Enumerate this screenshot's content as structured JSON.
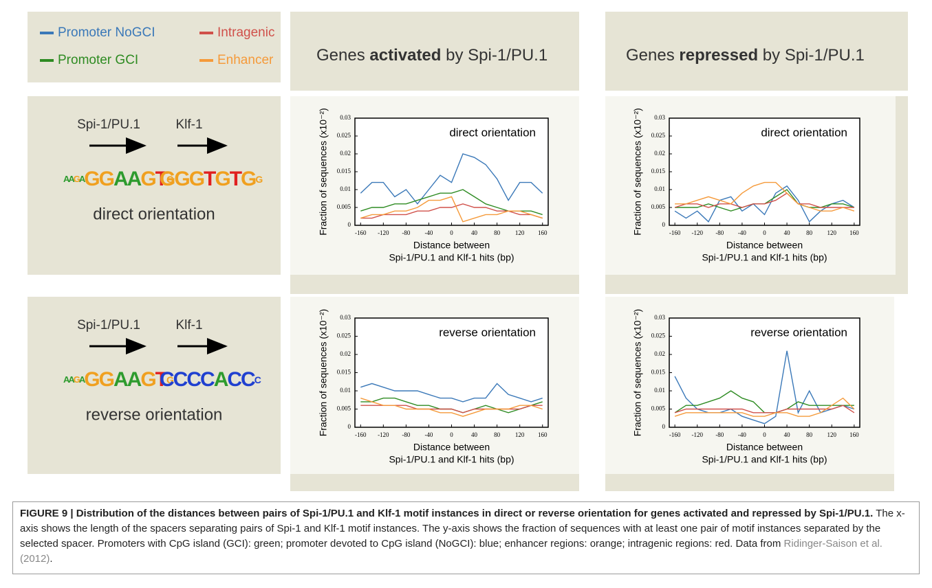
{
  "legend_title_none": null,
  "headers": [
    [
      "Genes ",
      "activated",
      " by Spi-1/PU.1"
    ],
    [
      "Genes ",
      "repressed",
      " by Spi-1/PU.1"
    ]
  ],
  "rows": [
    {
      "motifs": [
        "Spi-1/PU.1",
        "Klf-1"
      ],
      "logo": [
        "AAGAGGAAGTG",
        "GGGTGTGG"
      ],
      "label": "direct orientation"
    },
    {
      "motifs": [
        "Spi-1/PU.1",
        "Klf-1"
      ],
      "logo": [
        "AAGAGGAAGTG",
        "CCCCACCC"
      ],
      "label": "reverse orientation"
    }
  ],
  "chart_data": [
    {
      "type": "line",
      "title": "direct orientation",
      "ylabel": "Fraction of sequences (x10⁻²)",
      "xlabel": [
        "Distance between",
        "Spi-1/PU.1 and Klf-1 hits (bp)"
      ],
      "x": [
        -160,
        -140,
        -120,
        -100,
        -80,
        -60,
        -40,
        -20,
        0,
        20,
        40,
        60,
        80,
        100,
        120,
        140,
        160
      ],
      "xlim": [
        -170,
        170
      ],
      "ylim": [
        0,
        0.03
      ],
      "xticks": [
        -160,
        -120,
        -80,
        -40,
        0,
        40,
        80,
        120,
        160
      ],
      "yticks": [
        0,
        0.005,
        0.01,
        0.015,
        0.02,
        0.025,
        0.03
      ],
      "series": [
        {
          "name": "Promoter NoGCI",
          "color": "#3a78b8",
          "values": [
            0.009,
            0.012,
            0.012,
            0.008,
            0.01,
            0.006,
            0.01,
            0.014,
            0.012,
            0.02,
            0.019,
            0.017,
            0.013,
            0.007,
            0.012,
            0.012,
            0.009
          ]
        },
        {
          "name": "Promoter GCI",
          "color": "#2e8b22",
          "values": [
            0.004,
            0.005,
            0.005,
            0.006,
            0.006,
            0.007,
            0.008,
            0.009,
            0.009,
            0.01,
            0.008,
            0.006,
            0.005,
            0.004,
            0.004,
            0.004,
            0.003
          ]
        },
        {
          "name": "Intragenic",
          "color": "#d0504a",
          "values": [
            0.002,
            0.002,
            0.003,
            0.003,
            0.003,
            0.004,
            0.004,
            0.005,
            0.005,
            0.006,
            0.005,
            0.005,
            0.004,
            0.004,
            0.003,
            0.003,
            0.002
          ]
        },
        {
          "name": "Enhancer",
          "color": "#f59a3a",
          "values": [
            0.002,
            0.003,
            0.003,
            0.004,
            0.004,
            0.005,
            0.007,
            0.007,
            0.008,
            0.001,
            0.002,
            0.003,
            0.003,
            0.004,
            0.004,
            0.003,
            0.002
          ]
        }
      ]
    },
    {
      "type": "line",
      "title": "direct orientation",
      "ylabel": "Fraction of sequences (x10⁻²)",
      "xlabel": [
        "Distance between",
        "Spi-1/PU.1 and Klf-1 hits (bp)"
      ],
      "x": [
        -160,
        -140,
        -120,
        -100,
        -80,
        -60,
        -40,
        -20,
        0,
        20,
        40,
        60,
        80,
        100,
        120,
        140,
        160
      ],
      "xlim": [
        -170,
        170
      ],
      "ylim": [
        0,
        0.03
      ],
      "xticks": [
        -160,
        -120,
        -80,
        -40,
        0,
        40,
        80,
        120,
        160
      ],
      "yticks": [
        0,
        0.005,
        0.01,
        0.015,
        0.02,
        0.025,
        0.03
      ],
      "series": [
        {
          "name": "Promoter NoGCI",
          "color": "#3a78b8",
          "values": [
            0.004,
            0.002,
            0.004,
            0.001,
            0.007,
            0.008,
            0.004,
            0.006,
            0.003,
            0.009,
            0.011,
            0.007,
            0.001,
            0.004,
            0.006,
            0.007,
            0.005
          ]
        },
        {
          "name": "Promoter GCI",
          "color": "#2e8b22",
          "values": [
            0.005,
            0.005,
            0.005,
            0.006,
            0.005,
            0.004,
            0.005,
            0.006,
            0.006,
            0.008,
            0.01,
            0.006,
            0.005,
            0.005,
            0.006,
            0.006,
            0.005
          ]
        },
        {
          "name": "Intragenic",
          "color": "#d0504a",
          "values": [
            0.005,
            0.006,
            0.006,
            0.005,
            0.006,
            0.006,
            0.005,
            0.006,
            0.006,
            0.007,
            0.009,
            0.006,
            0.006,
            0.005,
            0.005,
            0.005,
            0.005
          ]
        },
        {
          "name": "Enhancer",
          "color": "#f59a3a",
          "values": [
            0.006,
            0.006,
            0.007,
            0.008,
            0.007,
            0.006,
            0.009,
            0.011,
            0.012,
            0.012,
            0.009,
            0.006,
            0.005,
            0.004,
            0.004,
            0.005,
            0.004
          ]
        }
      ]
    },
    {
      "type": "line",
      "title": "reverse orientation",
      "ylabel": "Fraction of sequences (x10⁻²)",
      "xlabel": [
        "Distance between",
        "Spi-1/PU.1 and Klf-1 hits (bp)"
      ],
      "x": [
        -160,
        -140,
        -120,
        -100,
        -80,
        -60,
        -40,
        -20,
        0,
        20,
        40,
        60,
        80,
        100,
        120,
        140,
        160
      ],
      "xlim": [
        -170,
        170
      ],
      "ylim": [
        0,
        0.03
      ],
      "xticks": [
        -160,
        -120,
        -80,
        -40,
        0,
        40,
        80,
        120,
        160
      ],
      "yticks": [
        0,
        0.005,
        0.01,
        0.015,
        0.02,
        0.025,
        0.03
      ],
      "series": [
        {
          "name": "Promoter NoGCI",
          "color": "#3a78b8",
          "values": [
            0.011,
            0.012,
            0.011,
            0.01,
            0.01,
            0.01,
            0.009,
            0.008,
            0.008,
            0.007,
            0.008,
            0.008,
            0.012,
            0.009,
            0.008,
            0.007,
            0.008
          ]
        },
        {
          "name": "Promoter GCI",
          "color": "#2e8b22",
          "values": [
            0.007,
            0.007,
            0.008,
            0.008,
            0.007,
            0.006,
            0.006,
            0.005,
            0.005,
            0.004,
            0.005,
            0.006,
            0.005,
            0.004,
            0.005,
            0.006,
            0.007
          ]
        },
        {
          "name": "Intragenic",
          "color": "#d0504a",
          "values": [
            0.006,
            0.006,
            0.006,
            0.006,
            0.006,
            0.005,
            0.005,
            0.005,
            0.005,
            0.004,
            0.005,
            0.005,
            0.005,
            0.005,
            0.005,
            0.006,
            0.006
          ]
        },
        {
          "name": "Enhancer",
          "color": "#f59a3a",
          "values": [
            0.008,
            0.007,
            0.006,
            0.006,
            0.005,
            0.005,
            0.005,
            0.004,
            0.004,
            0.003,
            0.004,
            0.005,
            0.005,
            0.005,
            0.006,
            0.006,
            0.005
          ]
        }
      ]
    },
    {
      "type": "line",
      "title": "reverse orientation",
      "ylabel": "Fraction of sequences (x10⁻²)",
      "xlabel": [
        "Distance between",
        "Spi-1/PU.1 and Klf-1 hits (bp)"
      ],
      "x": [
        -160,
        -140,
        -120,
        -100,
        -80,
        -60,
        -40,
        -20,
        0,
        20,
        40,
        60,
        80,
        100,
        120,
        140,
        160
      ],
      "xlim": [
        -170,
        170
      ],
      "ylim": [
        0,
        0.03
      ],
      "xticks": [
        -160,
        -120,
        -80,
        -40,
        0,
        40,
        80,
        120,
        160
      ],
      "yticks": [
        0,
        0.005,
        0.01,
        0.015,
        0.02,
        0.025,
        0.03
      ],
      "series": [
        {
          "name": "Promoter NoGCI",
          "color": "#3a78b8",
          "values": [
            0.014,
            0.008,
            0.005,
            0.004,
            0.004,
            0.005,
            0.003,
            0.002,
            0.001,
            0.003,
            0.021,
            0.004,
            0.01,
            0.004,
            0.005,
            0.006,
            0.005
          ]
        },
        {
          "name": "Promoter GCI",
          "color": "#2e8b22",
          "values": [
            0.004,
            0.006,
            0.006,
            0.007,
            0.008,
            0.01,
            0.008,
            0.007,
            0.004,
            0.004,
            0.005,
            0.007,
            0.006,
            0.006,
            0.006,
            0.006,
            0.006
          ]
        },
        {
          "name": "Intragenic",
          "color": "#d0504a",
          "values": [
            0.004,
            0.005,
            0.005,
            0.005,
            0.005,
            0.005,
            0.005,
            0.004,
            0.004,
            0.004,
            0.005,
            0.005,
            0.005,
            0.005,
            0.005,
            0.006,
            0.004
          ]
        },
        {
          "name": "Enhancer",
          "color": "#f59a3a",
          "values": [
            0.003,
            0.004,
            0.004,
            0.004,
            0.004,
            0.004,
            0.004,
            0.003,
            0.003,
            0.004,
            0.004,
            0.003,
            0.003,
            0.004,
            0.006,
            0.008,
            0.005
          ]
        }
      ]
    }
  ],
  "caption": {
    "bold": "FIGURE 9 | Distribution of the distances between pairs of Spi-1/PU.1 and Klf-1 motif instances in direct or reverse orientation for genes activated and repressed by Spi-1/PU.1.",
    "text": " The x-axis shows the length of the spacers separating pairs of Spi-1 and Klf-1 motif instances. The y-axis shows the fraction of sequences with at least one pair of motif instances separated by the selected spacer. Promoters with CpG island (GCI): green; promoter devoted to CpG island (NoGCI): blue; enhancer regions: orange; intragenic regions: red. Data from ",
    "citation": "Ridinger-Saison et al. (2012)",
    "end": "."
  }
}
